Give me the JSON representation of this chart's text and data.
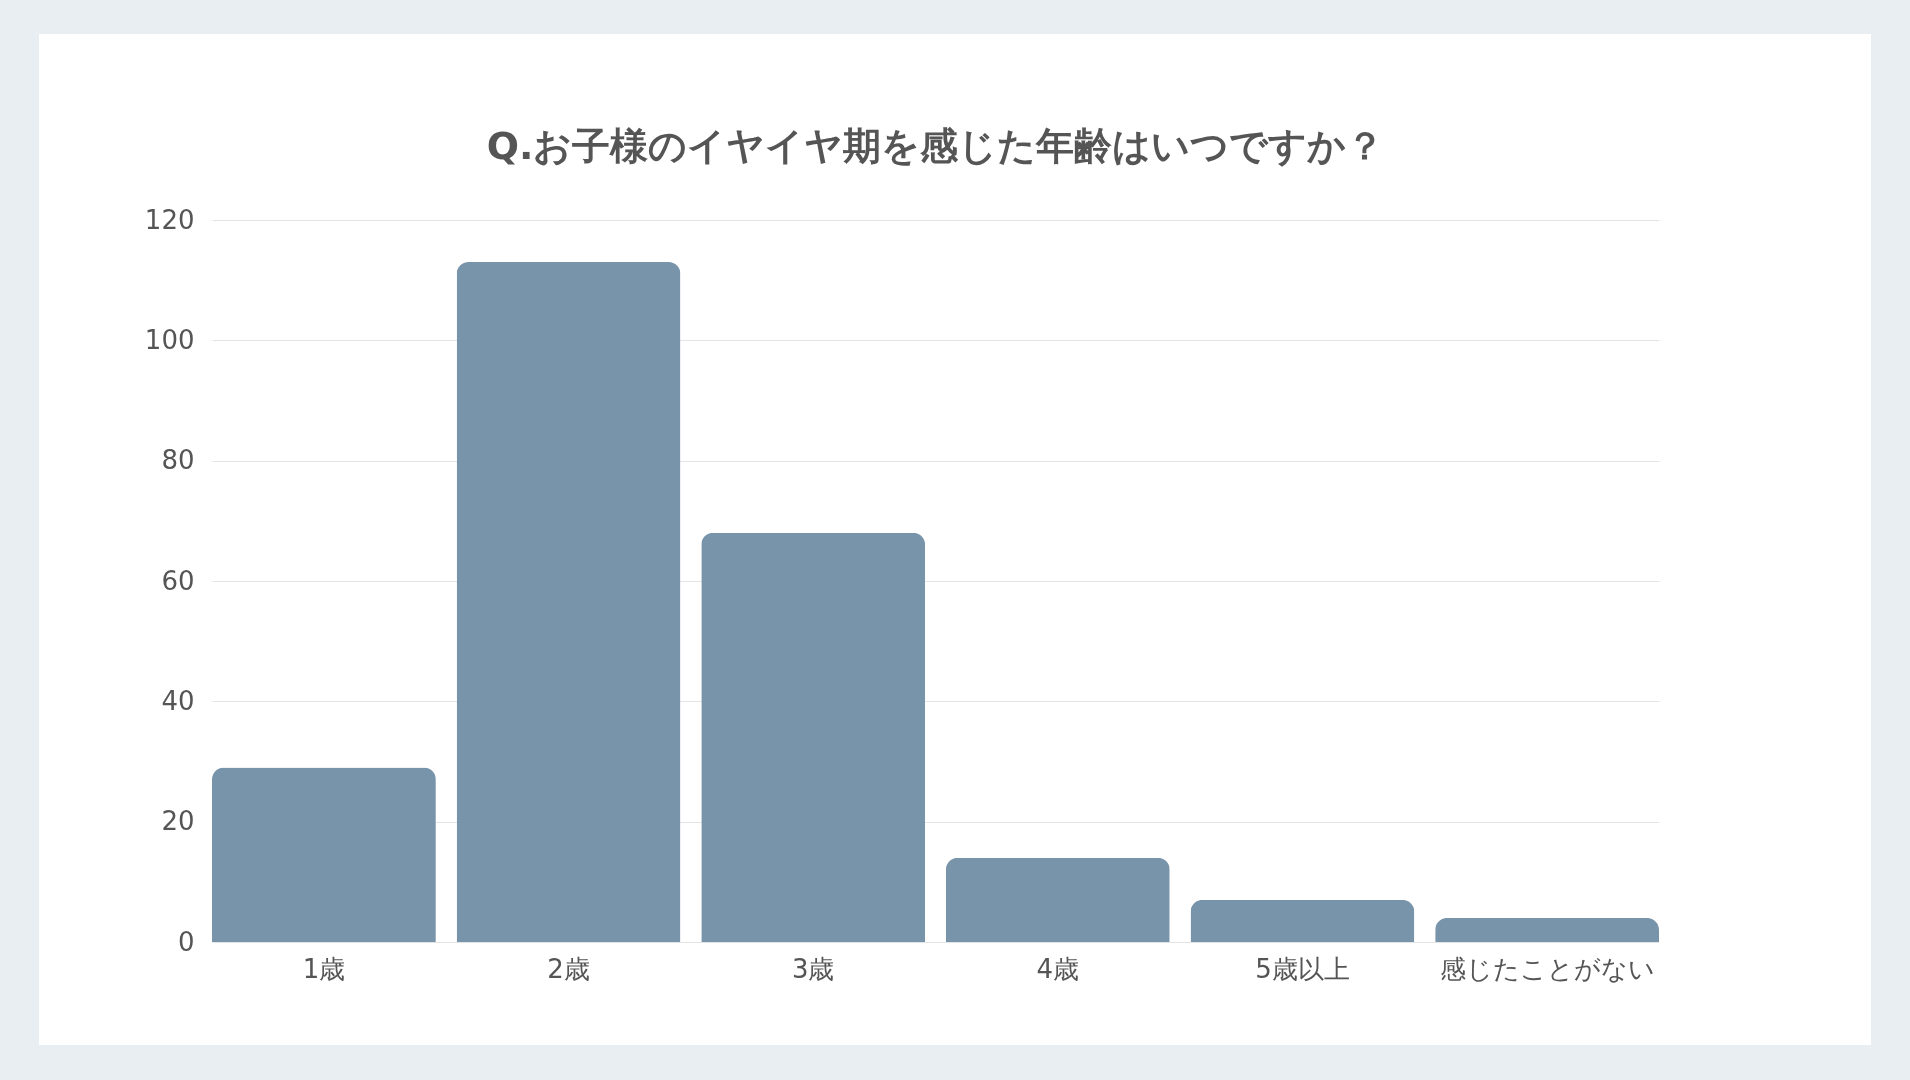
{
  "chart_data": {
    "type": "bar",
    "title": "Q.お子様のイヤイヤ期を感じた年齢はいつですか？",
    "categories": [
      "1歳",
      "2歳",
      "3歳",
      "4歳",
      "5歳以上",
      "感じたことがない"
    ],
    "values": [
      29,
      113,
      68,
      14,
      7,
      4
    ],
    "color": "#7894ab",
    "ylim": [
      0,
      120
    ],
    "yticks": [
      0,
      20,
      40,
      60,
      80,
      100,
      120
    ],
    "grid": "y"
  }
}
